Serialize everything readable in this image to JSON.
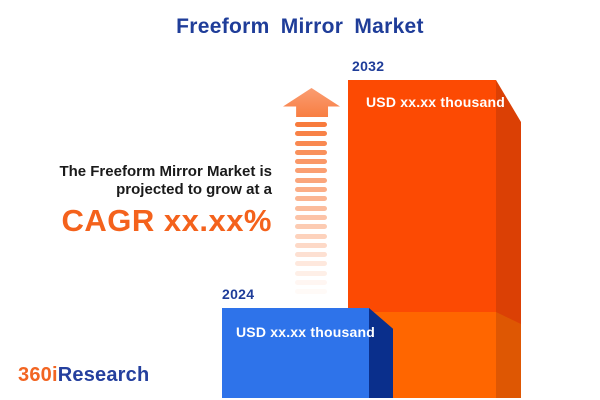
{
  "title": "Freeform Mirror Market",
  "annotation": {
    "line1": "The Freeform Mirror Market is",
    "line2": "projected to grow at a",
    "cagr": "CAGR xx.xx%"
  },
  "bars": [
    {
      "year": "2024",
      "value_label": "USD xx.xx thousand",
      "face_color": "#2e73ea",
      "side_color": "#0a2f8c"
    },
    {
      "year": "2032",
      "value_label": "USD xx.xx thousand",
      "face_color": "#fc4a03",
      "side_color": "#db4005",
      "overlay_face_color": "#ff6600",
      "overlay_side_color": "#de5703"
    }
  ],
  "logo": {
    "prefix": "360i",
    "suffix": "Research"
  },
  "colors": {
    "title_blue": "#1f3d99",
    "accent_orange": "#f4621c",
    "text_dark": "#1a1a1a",
    "arrow_head_orange": "#f98a54",
    "arrow_stripe_orange": "#f87b3c"
  },
  "chart_data": {
    "type": "bar",
    "categories": [
      "2024",
      "2032"
    ],
    "values": [
      null,
      null
    ],
    "value_labels": [
      "USD xx.xx thousand",
      "USD xx.xx thousand"
    ],
    "title": "Freeform Mirror Market",
    "annotation": "The Freeform Mirror Market is projected to grow at a CAGR xx.xx%",
    "xlabel": "",
    "ylabel": "",
    "legend": false,
    "grid": false,
    "layout_hint": "3D infographic bars, 2024 small blue bar in front-left, 2032 tall orange bar behind-right, dashed growth arrow between annotation and bars"
  }
}
